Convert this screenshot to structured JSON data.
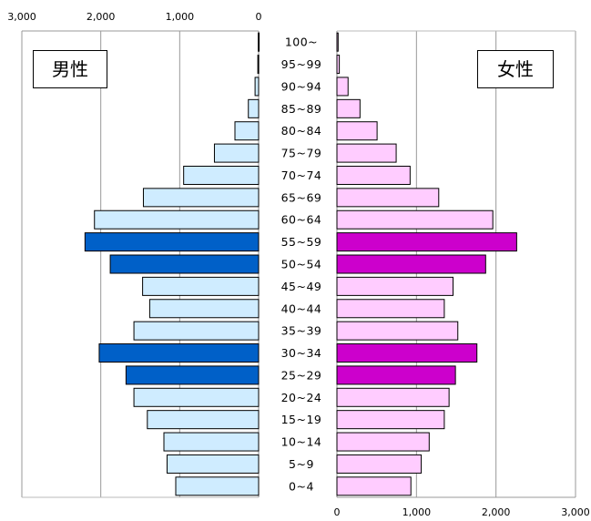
{
  "chart_data": {
    "type": "bar",
    "subtype": "population-pyramid",
    "categories": [
      "100~",
      "95~99",
      "90~94",
      "85~89",
      "80~84",
      "75~79",
      "70~74",
      "65~69",
      "60~64",
      "55~59",
      "50~54",
      "45~49",
      "40~44",
      "35~39",
      "30~34",
      "25~29",
      "20~24",
      "15~19",
      "10~14",
      "5~9",
      "0~4"
    ],
    "series": [
      {
        "name": "男性",
        "side": "left",
        "values": [
          5,
          10,
          45,
          130,
          300,
          560,
          950,
          1460,
          2080,
          2200,
          1880,
          1470,
          1380,
          1580,
          2020,
          1680,
          1580,
          1410,
          1200,
          1160,
          1050
        ],
        "highlight": [
          false,
          false,
          false,
          false,
          false,
          false,
          false,
          false,
          false,
          true,
          true,
          false,
          false,
          false,
          true,
          true,
          false,
          false,
          false,
          false,
          false
        ],
        "color": "#cfecff",
        "highlight_color": "#0060c8"
      },
      {
        "name": "女性",
        "side": "right",
        "values": [
          15,
          30,
          140,
          290,
          505,
          745,
          920,
          1280,
          1960,
          2260,
          1870,
          1460,
          1350,
          1520,
          1760,
          1490,
          1410,
          1350,
          1160,
          1060,
          930
        ],
        "highlight": [
          false,
          false,
          false,
          false,
          false,
          false,
          false,
          false,
          false,
          true,
          true,
          false,
          false,
          false,
          true,
          true,
          false,
          false,
          false,
          false,
          false
        ],
        "color": "#ffccff",
        "highlight_color": "#cc00cc"
      }
    ],
    "left_axis_ticks": [
      "3,000",
      "2,000",
      "1,000",
      "0"
    ],
    "right_axis_ticks": [
      "0",
      "1,000",
      "2,000",
      "3,000"
    ],
    "xlim": [
      0,
      3000
    ],
    "grid": true,
    "legend_position": "top-corners"
  }
}
